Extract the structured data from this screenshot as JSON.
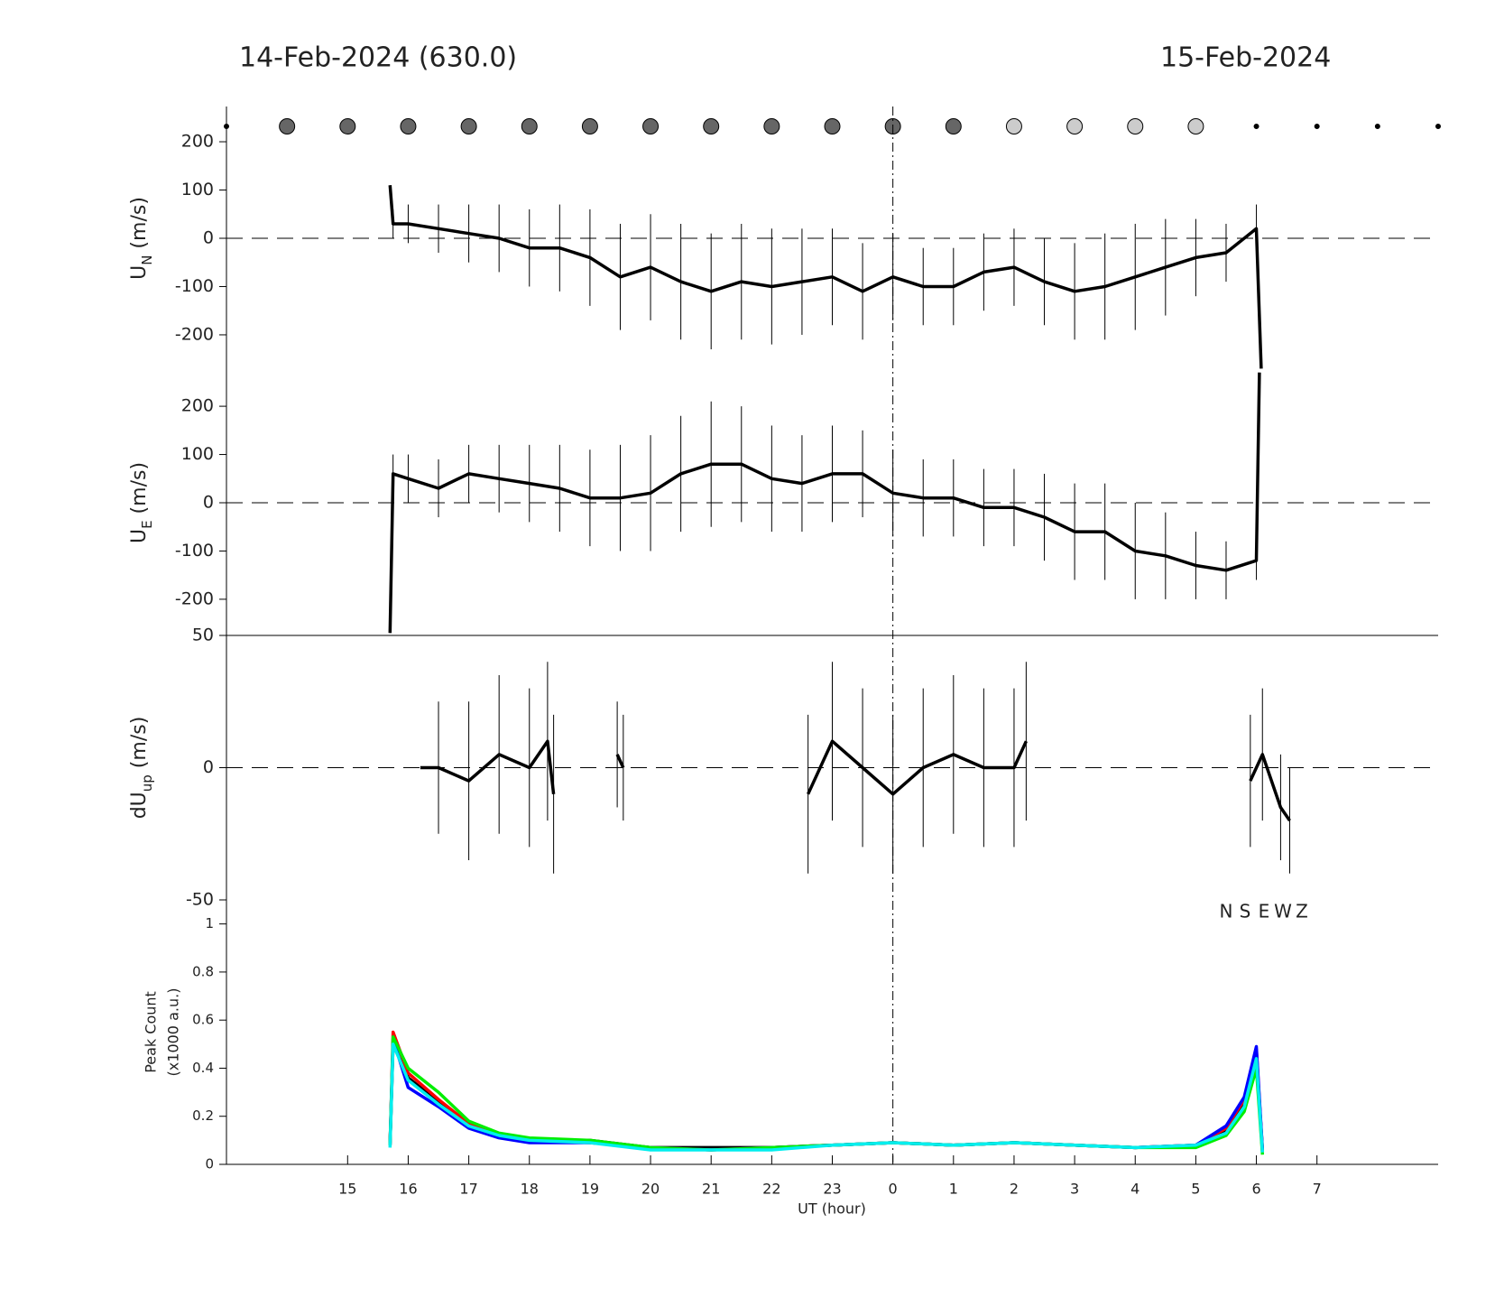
{
  "chart_data": [
    {
      "type": "line",
      "title": "14-Feb-2024 (630.0)",
      "title_right": "15-Feb-2024",
      "ylabel": {
        "text": "U",
        "sub": "N",
        "unit": "(m/s)"
      },
      "xlim": [
        13,
        33
      ],
      "ylim": [
        -273,
        273
      ],
      "yticks": [
        -200,
        -100,
        0,
        100,
        200
      ],
      "hline": 0,
      "vline": 24,
      "markers": {
        "x": [
          13,
          14,
          15,
          16,
          17,
          18,
          19,
          20,
          21,
          22,
          23,
          24,
          25,
          26,
          27,
          28,
          29,
          30,
          31,
          32,
          33
        ],
        "fill": [
          "#000000",
          "#666666",
          "#666666",
          "#666666",
          "#666666",
          "#666666",
          "#666666",
          "#666666",
          "#666666",
          "#666666",
          "#666666",
          "#666666",
          "#666666",
          "#cccccc",
          "#cccccc",
          "#cccccc",
          "#cccccc",
          "#000000",
          "#000000",
          "#000000",
          "#000000"
        ]
      },
      "x": [
        15.7,
        15.75,
        16,
        16.5,
        17,
        17.5,
        18,
        18.5,
        19,
        19.5,
        20,
        20.5,
        21,
        21.5,
        22,
        22.5,
        23,
        23.5,
        24,
        24.5,
        25,
        25.5,
        26,
        26.5,
        27,
        27.5,
        28,
        28.5,
        29,
        29.5,
        30,
        30.08
      ],
      "series": [
        {
          "color": "#000000",
          "values": [
            110,
            30,
            30,
            20,
            10,
            0,
            -20,
            -20,
            -40,
            -80,
            -60,
            -90,
            -110,
            -90,
            -100,
            -90,
            -80,
            -110,
            -80,
            -100,
            -100,
            -70,
            -60,
            -90,
            -110,
            -100,
            -80,
            -60,
            -40,
            -30,
            20,
            -270
          ],
          "errors": [
            0,
            30,
            40,
            50,
            60,
            70,
            80,
            90,
            100,
            110,
            110,
            120,
            120,
            120,
            120,
            110,
            100,
            100,
            90,
            80,
            80,
            80,
            80,
            90,
            100,
            110,
            110,
            100,
            80,
            60,
            50,
            0
          ]
        }
      ]
    },
    {
      "type": "line",
      "ylabel": {
        "text": "U",
        "sub": "E",
        "unit": "(m/s)"
      },
      "xlim": [
        13,
        33
      ],
      "ylim": [
        -275,
        275
      ],
      "yticks": [
        -200,
        -100,
        0,
        100,
        200
      ],
      "hline": 0,
      "x": [
        15.7,
        15.75,
        16,
        16.5,
        17,
        17.5,
        18,
        18.5,
        19,
        19.5,
        20,
        20.5,
        21,
        21.5,
        22,
        22.5,
        23,
        23.5,
        24,
        24.5,
        25,
        25.5,
        26,
        26.5,
        27,
        27.5,
        28,
        28.5,
        29,
        29.5,
        30,
        30.05
      ],
      "series": [
        {
          "color": "#000000",
          "values": [
            -270,
            60,
            50,
            30,
            60,
            50,
            40,
            30,
            10,
            10,
            20,
            60,
            80,
            80,
            50,
            40,
            60,
            60,
            20,
            10,
            10,
            -10,
            -10,
            -30,
            -60,
            -60,
            -100,
            -110,
            -130,
            -140,
            -120,
            270
          ],
          "errors": [
            0,
            40,
            50,
            60,
            60,
            70,
            80,
            90,
            100,
            110,
            120,
            120,
            130,
            120,
            110,
            100,
            100,
            90,
            90,
            80,
            80,
            80,
            80,
            90,
            100,
            100,
            100,
            90,
            70,
            60,
            40,
            0
          ]
        }
      ]
    },
    {
      "type": "line",
      "ylabel": {
        "text": "dU",
        "sub": "up",
        "unit": "(m/s)"
      },
      "xlim": [
        13,
        33
      ],
      "ylim": [
        -50,
        50
      ],
      "yticks": [
        -50,
        0,
        50
      ],
      "hline": 0,
      "x": [
        16.2,
        16.5,
        17,
        17.5,
        18,
        18.3,
        18.4,
        19,
        19.45,
        19.55,
        21,
        22.6,
        23,
        23.5,
        24,
        24.5,
        25,
        25.5,
        26,
        26.2,
        28,
        29.9,
        30.1,
        30.4,
        30.55
      ],
      "series": [
        {
          "color": "#000000",
          "values": [
            0,
            0,
            -5,
            5,
            0,
            10,
            -10,
            null,
            5,
            0,
            null,
            -10,
            10,
            0,
            -10,
            0,
            5,
            0,
            0,
            10,
            null,
            -5,
            5,
            -15,
            -20
          ],
          "errors": [
            0,
            25,
            30,
            30,
            30,
            30,
            30,
            null,
            20,
            20,
            null,
            30,
            30,
            30,
            30,
            30,
            30,
            30,
            30,
            30,
            null,
            25,
            25,
            20,
            20
          ]
        }
      ]
    },
    {
      "type": "line",
      "ylabel": {
        "text": "Peak Count",
        "unit": "(x1000 a.u.)"
      },
      "xlabel": "UT (hour)",
      "xlim": [
        13,
        33
      ],
      "ylim": [
        0,
        1.1
      ],
      "yticks": [
        0,
        0.2,
        0.4,
        0.6,
        0.8,
        1
      ],
      "xticks": [
        15,
        16,
        17,
        18,
        19,
        20,
        21,
        22,
        23,
        {
          "value": 24,
          "label": "0"
        },
        {
          "value": 25,
          "label": "1"
        },
        {
          "value": 26,
          "label": "2"
        },
        {
          "value": 27,
          "label": "3"
        },
        {
          "value": 28,
          "label": "4"
        },
        {
          "value": 29,
          "label": "5"
        },
        {
          "value": 30,
          "label": "6"
        },
        {
          "value": 31,
          "label": "7"
        }
      ],
      "x": [
        15.7,
        15.75,
        16,
        16.5,
        17,
        17.5,
        18,
        19,
        20,
        21,
        22,
        23,
        24,
        25,
        26,
        27,
        28,
        29,
        29.5,
        29.8,
        30,
        30.1
      ],
      "series": [
        {
          "name": "N",
          "color": "#000000",
          "values": [
            0.08,
            0.5,
            0.36,
            0.26,
            0.16,
            0.12,
            0.1,
            0.1,
            0.07,
            0.07,
            0.07,
            0.08,
            0.09,
            0.08,
            0.09,
            0.08,
            0.07,
            0.08,
            0.14,
            0.26,
            0.46,
            0.06
          ]
        },
        {
          "name": "S",
          "color": "#ff0000",
          "values": [
            0.08,
            0.55,
            0.38,
            0.27,
            0.17,
            0.12,
            0.1,
            0.09,
            0.07,
            0.06,
            0.07,
            0.08,
            0.09,
            0.08,
            0.09,
            0.08,
            0.07,
            0.08,
            0.15,
            0.27,
            0.48,
            0.05
          ]
        },
        {
          "name": "E",
          "color": "#0000ff",
          "values": [
            0.08,
            0.52,
            0.32,
            0.24,
            0.15,
            0.11,
            0.09,
            0.09,
            0.07,
            0.06,
            0.07,
            0.08,
            0.09,
            0.08,
            0.09,
            0.08,
            0.07,
            0.08,
            0.16,
            0.28,
            0.49,
            0.06
          ]
        },
        {
          "name": "W",
          "color": "#00ee00",
          "values": [
            0.08,
            0.53,
            0.4,
            0.3,
            0.18,
            0.13,
            0.11,
            0.1,
            0.07,
            0.06,
            0.07,
            0.08,
            0.09,
            0.08,
            0.09,
            0.08,
            0.07,
            0.07,
            0.12,
            0.22,
            0.4,
            0.04
          ]
        },
        {
          "name": "Z",
          "color": "#00eeee",
          "values": [
            0.07,
            0.5,
            0.35,
            0.25,
            0.16,
            0.12,
            0.1,
            0.09,
            0.06,
            0.06,
            0.06,
            0.08,
            0.09,
            0.08,
            0.09,
            0.08,
            0.07,
            0.08,
            0.13,
            0.24,
            0.44,
            0.05
          ]
        }
      ]
    }
  ]
}
